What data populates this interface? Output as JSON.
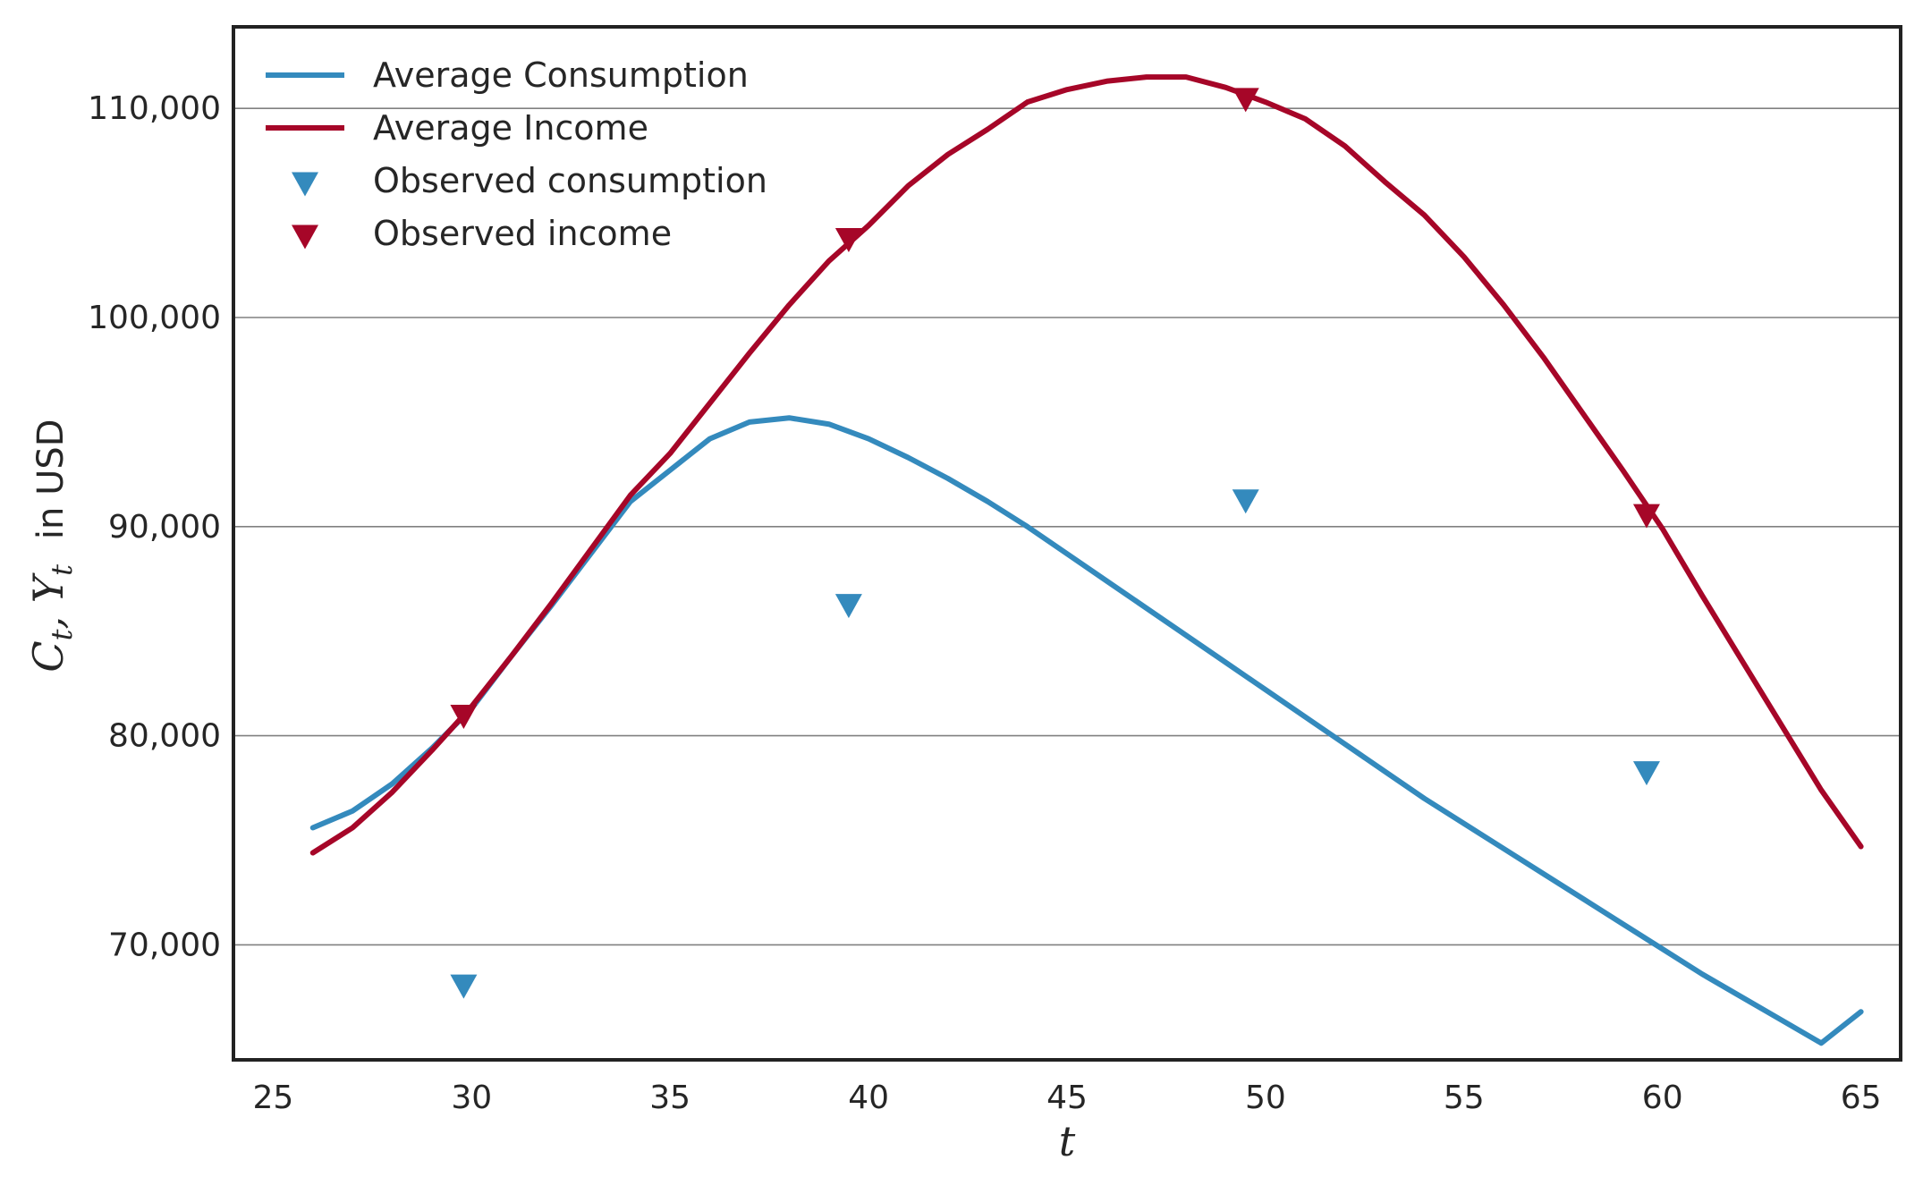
{
  "chart_data": {
    "type": "line",
    "xlabel": "t",
    "ylabel": {
      "math": "C_t, Y_t",
      "math_parts": [
        "C",
        "t",
        ", ",
        "Y",
        "t"
      ],
      "text": "in USD"
    },
    "xlim": [
      24,
      66
    ],
    "ylim": [
      64500,
      113900
    ],
    "xticks": [
      25,
      30,
      35,
      40,
      45,
      50,
      55,
      60,
      65
    ],
    "yticks": [
      70000,
      80000,
      90000,
      100000,
      110000
    ],
    "ytick_labels": [
      "70,000",
      "80,000",
      "90,000",
      "100,000",
      "110,000"
    ],
    "grid": "horizontal",
    "legend_position": "top-left",
    "series": [
      {
        "name": "Average Consumption",
        "kind": "line",
        "color": "#348ABD",
        "x": [
          26,
          27,
          28,
          29,
          30,
          31,
          32,
          33,
          34,
          35,
          36,
          37,
          38,
          39,
          40,
          41,
          42,
          43,
          44,
          45,
          46,
          47,
          48,
          49,
          50,
          51,
          52,
          53,
          54,
          55,
          56,
          57,
          58,
          59,
          60,
          61,
          62,
          63,
          64,
          65
        ],
        "values": [
          75600,
          76400,
          77700,
          79300,
          81300,
          83700,
          86200,
          88700,
          91200,
          93700,
          95000,
          95100,
          95200,
          95000,
          94300,
          93400,
          92300,
          91100,
          89900,
          88600,
          87300,
          86100,
          84900,
          83700,
          82500,
          81300,
          80200,
          79100,
          78000,
          76900,
          75900,
          74800,
          73700,
          72600,
          71500,
          70500,
          69500,
          68500,
          67500,
          66500
        ],
        "path_values": [
          75600,
          76400,
          77700,
          79400,
          81300,
          83800,
          86200,
          88700,
          91200,
          92700,
          94200,
          95000,
          95200,
          94900,
          94200,
          93300,
          92300,
          91200,
          90000,
          88700,
          87400,
          86100,
          84800,
          83500,
          82200,
          80900,
          79600,
          78300,
          77000,
          75800,
          74600,
          73400,
          72200,
          71000,
          69800,
          68600,
          67500,
          66400,
          65300,
          66800
        ]
      },
      {
        "name": "Average Income",
        "kind": "line",
        "color": "#A60628",
        "x": [
          26,
          27,
          28,
          29,
          30,
          31,
          32,
          33,
          34,
          35,
          36,
          37,
          38,
          39,
          40,
          41,
          42,
          43,
          44,
          45,
          46,
          47,
          48,
          49,
          50,
          51,
          52,
          53,
          54,
          55,
          56,
          57,
          58,
          59,
          60,
          61,
          62,
          63,
          64,
          65
        ],
        "values": [
          74400,
          75600,
          77300,
          79300,
          81400,
          83800,
          86300,
          88900,
          91200,
          93500,
          95900,
          98300,
          100600,
          102500,
          104400,
          106300,
          107800,
          109000,
          110300,
          110900,
          111300,
          111500,
          111500,
          111000,
          110300,
          109500,
          108200,
          106500,
          104900,
          102900,
          100600,
          98100,
          95400,
          92700,
          89800,
          86800,
          83700,
          80600,
          77600,
          74700
        ],
        "path_values": [
          74400,
          75600,
          77300,
          79300,
          81400,
          83800,
          86300,
          88900,
          91500,
          93500,
          95900,
          98300,
          100600,
          102700,
          104400,
          106300,
          107800,
          109000,
          110300,
          110900,
          111300,
          111500,
          111500,
          111000,
          110300,
          109500,
          108200,
          106500,
          104900,
          102900,
          100600,
          98100,
          95400,
          92700,
          89900,
          86700,
          83600,
          80500,
          77400,
          74700
        ]
      },
      {
        "name": "Observed consumption",
        "kind": "scatter",
        "marker": "triangle-down",
        "color": "#348ABD",
        "x": [
          29.8,
          39.5,
          49.5,
          59.6
        ],
        "values": [
          68000,
          86200,
          91200,
          78200
        ]
      },
      {
        "name": "Observed income",
        "kind": "scatter",
        "marker": "triangle-down",
        "color": "#A60628",
        "x": [
          29.8,
          39.5,
          49.5,
          59.6
        ],
        "values": [
          80900,
          103700,
          110400,
          90500
        ]
      }
    ]
  },
  "colors": {
    "frame": "#222222",
    "grid": "#808080",
    "text": "#262626"
  }
}
